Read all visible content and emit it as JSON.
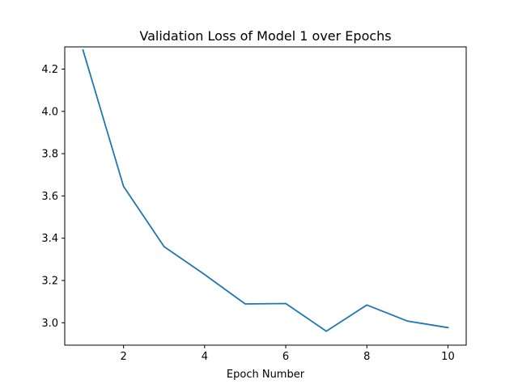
{
  "chart_data": {
    "type": "line",
    "title": "Validation Loss of Model 1 over Epochs",
    "xlabel": "Epoch Number",
    "ylabel": "",
    "xlim": [
      0.55,
      10.45
    ],
    "ylim": [
      2.894,
      4.305
    ],
    "x_ticks": [
      2,
      4,
      6,
      8,
      10
    ],
    "y_ticks": [
      3.0,
      3.2,
      3.4,
      3.6,
      3.8,
      4.0,
      4.2
    ],
    "y_tick_labels": [
      "3.0",
      "3.2",
      "3.4",
      "3.6",
      "3.8",
      "4.0",
      "4.2"
    ],
    "grid": false,
    "series": [
      {
        "color": "#1f77b4",
        "x": [
          1,
          2,
          3,
          4,
          5,
          6,
          7,
          8,
          9,
          10
        ],
        "y": [
          4.29,
          3.645,
          3.36,
          3.228,
          3.089,
          3.091,
          2.96,
          3.084,
          3.008,
          2.977
        ]
      }
    ]
  }
}
